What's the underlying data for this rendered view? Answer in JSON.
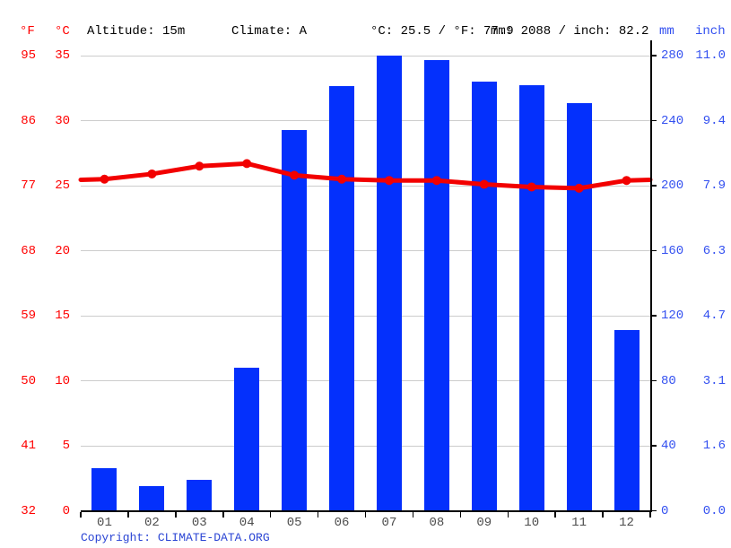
{
  "header": {
    "deg_f": "°F",
    "deg_c": "°C",
    "altitude": "Altitude: 15m",
    "climate": "Climate: A",
    "temperature_summary": "°C: 25.5 / °F: 77.9",
    "precipitation_summary": "mm: 2088 / inch: 82.2",
    "mm": "mm",
    "inch": "inch"
  },
  "axes": {
    "fahrenheit": [
      "95",
      "86",
      "77",
      "68",
      "59",
      "50",
      "41",
      "32"
    ],
    "celsius": [
      "35",
      "30",
      "25",
      "20",
      "15",
      "10",
      "5",
      "0"
    ],
    "mm": [
      "280",
      "240",
      "200",
      "160",
      "120",
      "80",
      "40",
      "0"
    ],
    "inch": [
      "11.0",
      "9.4",
      "7.9",
      "6.3",
      "4.7",
      "3.1",
      "1.6",
      "0.0"
    ]
  },
  "chart_data": {
    "type": "bar+line",
    "categories": [
      "01",
      "02",
      "03",
      "04",
      "05",
      "06",
      "07",
      "08",
      "09",
      "10",
      "11",
      "12"
    ],
    "series": [
      {
        "name": "precipitation_mm",
        "type": "bar",
        "color": "#0430fc",
        "values": [
          26,
          15,
          19,
          88,
          234,
          261,
          280,
          277,
          264,
          262,
          251,
          111
        ]
      },
      {
        "name": "temperature_c",
        "type": "line",
        "color": "#f20000",
        "values": [
          25.5,
          25.9,
          26.5,
          26.7,
          25.8,
          25.5,
          25.4,
          25.4,
          25.1,
          24.9,
          24.8,
          25.4
        ]
      }
    ],
    "y_left": {
      "label_f": "°F",
      "label_c": "°C",
      "max_c": 35,
      "min_c": 0
    },
    "y_right": {
      "label_mm": "mm",
      "label_inch": "inch",
      "max_mm": 280,
      "min_mm": 0
    },
    "grid": true,
    "annual_mean_c": 25.5,
    "annual_precip_mm": 2088
  },
  "colors": {
    "bar": "#0430fc",
    "line": "#f20000",
    "axis_red": "#ff0000",
    "axis_blue": "#3350f0",
    "grid": "#cccccc",
    "axis_line": "#000000",
    "month": "#4d4d4d",
    "copyright": "#2b45d4"
  },
  "copyright": {
    "label": "Copyright: ",
    "link": "CLIMATE-DATA.ORG"
  }
}
